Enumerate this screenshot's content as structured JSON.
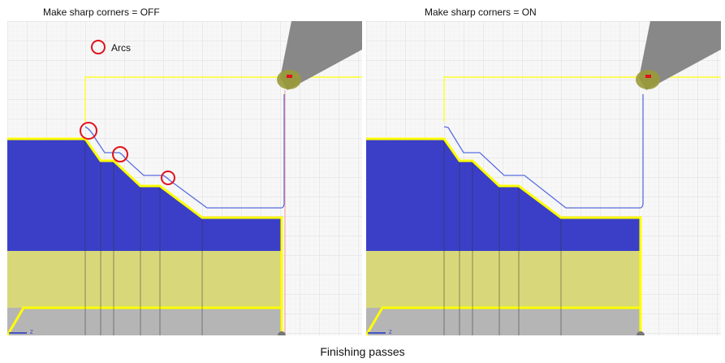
{
  "left_panel": {
    "title": "Make sharp corners = OFF",
    "arcs_label": "Arcs"
  },
  "right_panel": {
    "title": "Make sharp corners = ON"
  },
  "caption": "Finishing passes",
  "axis_label": "Z",
  "colors": {
    "stock_blue": "#3b3fc8",
    "part_yellow": "#d8d87a",
    "outline_yellow": "#ffff00",
    "toolpath": "#5a6ee0",
    "highlight_red": "#e0121b",
    "grid": "#dcdcdc",
    "tool_gray": "#888888",
    "chuck_gray": "#b5b5b5"
  }
}
